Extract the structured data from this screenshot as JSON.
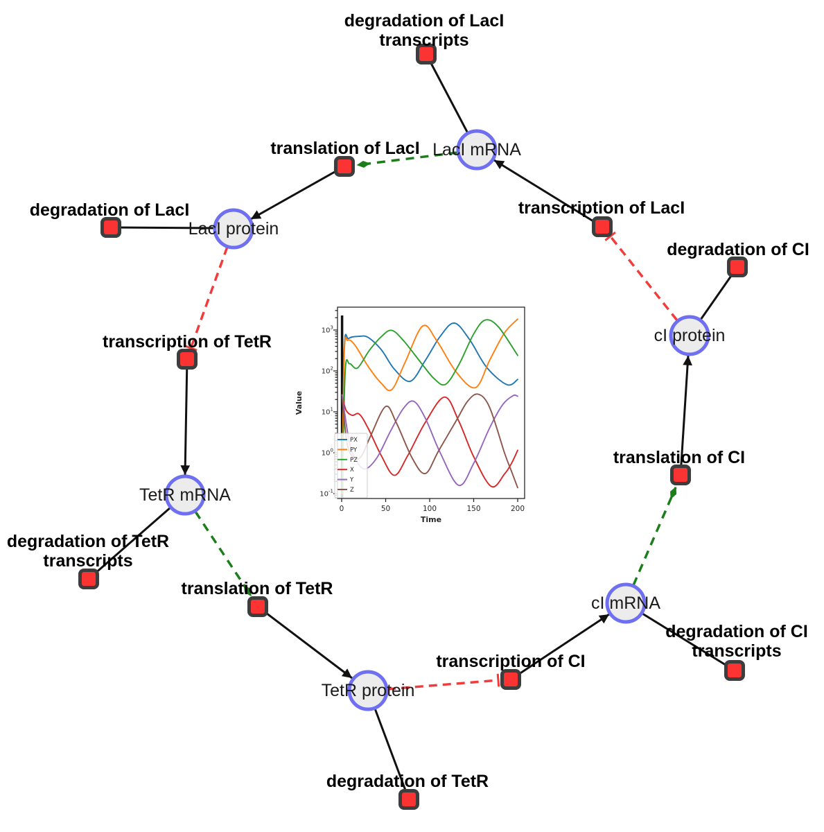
{
  "style": {
    "species_fill": "#ececec",
    "species_stroke": "#6f6ff2",
    "reaction_fill": "#fb3333",
    "reaction_stroke": "#3d3d3d",
    "edge_color": "#111111",
    "modifier_edge_color": "#1b7e1b",
    "inhibition_edge_color": "#f23c3c"
  },
  "diagram": {
    "species": [
      {
        "id": "laci-mrna",
        "label": "LacI mRNA"
      },
      {
        "id": "laci-protein",
        "label": "LacI protein"
      },
      {
        "id": "tetr-mrna",
        "label": "TetR mRNA"
      },
      {
        "id": "tetr-protein",
        "label": "TetR protein"
      },
      {
        "id": "ci-mrna",
        "label": "cI mRNA"
      },
      {
        "id": "ci-protein",
        "label": "cI protein"
      }
    ],
    "reactions": [
      {
        "id": "degradation-of-laci-transcripts",
        "lines": [
          "degradation of LacI",
          "transcripts"
        ]
      },
      {
        "id": "translation-of-laci",
        "lines": [
          "translation of LacI"
        ]
      },
      {
        "id": "transcription-of-laci",
        "lines": [
          "transcription of LacI"
        ]
      },
      {
        "id": "degradation-of-laci",
        "lines": [
          "degradation of LacI"
        ]
      },
      {
        "id": "transcription-of-tetr",
        "lines": [
          "transcription of TetR"
        ]
      },
      {
        "id": "degradation-of-tetr-transcripts",
        "lines": [
          "degradation of TetR",
          "transcripts"
        ]
      },
      {
        "id": "translation-of-tetr",
        "lines": [
          "translation of TetR"
        ]
      },
      {
        "id": "degradation-of-tetr",
        "lines": [
          "degradation of TetR"
        ]
      },
      {
        "id": "transcription-of-ci",
        "lines": [
          "transcription of CI"
        ]
      },
      {
        "id": "degradation-of-ci-transcripts",
        "lines": [
          "degradation of CI",
          "transcripts"
        ]
      },
      {
        "id": "translation-of-ci",
        "lines": [
          "translation of CI"
        ]
      },
      {
        "id": "degradation-of-ci",
        "lines": [
          "degradation of CI"
        ]
      }
    ],
    "edges": [
      {
        "source": "LacI mRNA",
        "target": "degradation of LacI transcripts",
        "type": "reactant"
      },
      {
        "source": "transcription of LacI",
        "target": "LacI mRNA",
        "type": "product"
      },
      {
        "source": "LacI mRNA",
        "target": "translation of LacI",
        "type": "modifier"
      },
      {
        "source": "translation of LacI",
        "target": "LacI protein",
        "type": "product"
      },
      {
        "source": "LacI protein",
        "target": "degradation of LacI",
        "type": "reactant"
      },
      {
        "source": "LacI protein",
        "target": "transcription of TetR",
        "type": "inhibition"
      },
      {
        "source": "transcription of TetR",
        "target": "TetR mRNA",
        "type": "product"
      },
      {
        "source": "TetR mRNA",
        "target": "degradation of TetR transcripts",
        "type": "reactant"
      },
      {
        "source": "TetR mRNA",
        "target": "translation of TetR",
        "type": "modifier"
      },
      {
        "source": "translation of TetR",
        "target": "TetR protein",
        "type": "product"
      },
      {
        "source": "TetR protein",
        "target": "degradation of TetR",
        "type": "reactant"
      },
      {
        "source": "TetR protein",
        "target": "transcription of CI",
        "type": "inhibition"
      },
      {
        "source": "transcription of CI",
        "target": "cI mRNA",
        "type": "product"
      },
      {
        "source": "cI mRNA",
        "target": "degradation of CI transcripts",
        "type": "reactant"
      },
      {
        "source": "cI mRNA",
        "target": "translation of CI",
        "type": "modifier"
      },
      {
        "source": "translation of CI",
        "target": "cI protein",
        "type": "product"
      },
      {
        "source": "cI protein",
        "target": "degradation of CI",
        "type": "reactant"
      },
      {
        "source": "cI protein",
        "target": "transcription of LacI",
        "type": "inhibition"
      }
    ]
  },
  "chart_data": {
    "type": "line",
    "title": "",
    "xlabel": "Time",
    "ylabel": "Value",
    "yscale": "log",
    "grid": false,
    "legend_position": "lower left",
    "x_ticks": [
      0,
      50,
      100,
      150,
      200
    ],
    "y_tick_exponents": [
      -1,
      0,
      1,
      2,
      3
    ],
    "xlim": [
      -5,
      208
    ],
    "ylim": [
      0.075,
      3600
    ],
    "vline_x": 0,
    "series": [
      {
        "name": "PX",
        "color": "#1f77b4",
        "points": [
          [
            0.5,
            0.1
          ],
          [
            3,
            350
          ],
          [
            8,
            620
          ],
          [
            20,
            700
          ],
          [
            30,
            660
          ],
          [
            45,
            330
          ],
          [
            60,
            110
          ],
          [
            78,
            56
          ],
          [
            95,
            180
          ],
          [
            112,
            700
          ],
          [
            128,
            1480
          ],
          [
            145,
            600
          ],
          [
            165,
            120
          ],
          [
            188,
            46
          ],
          [
            200,
            62
          ]
        ]
      },
      {
        "name": "PY",
        "color": "#ff7f0e",
        "points": [
          [
            0.5,
            0.1
          ],
          [
            3,
            280
          ],
          [
            7,
            560
          ],
          [
            15,
            430
          ],
          [
            30,
            130
          ],
          [
            45,
            50
          ],
          [
            57,
            35
          ],
          [
            72,
            160
          ],
          [
            92,
            1250
          ],
          [
            108,
            550
          ],
          [
            130,
            95
          ],
          [
            152,
            39
          ],
          [
            168,
            180
          ],
          [
            185,
            850
          ],
          [
            200,
            1850
          ]
        ]
      },
      {
        "name": "PZ",
        "color": "#2ca02c",
        "points": [
          [
            0.5,
            0.1
          ],
          [
            4,
            95
          ],
          [
            9,
            150
          ],
          [
            18,
            118
          ],
          [
            32,
            330
          ],
          [
            46,
            720
          ],
          [
            57,
            980
          ],
          [
            70,
            560
          ],
          [
            90,
            160
          ],
          [
            105,
            65
          ],
          [
            118,
            47
          ],
          [
            133,
            140
          ],
          [
            150,
            800
          ],
          [
            163,
            1750
          ],
          [
            178,
            1200
          ],
          [
            200,
            240
          ]
        ]
      },
      {
        "name": "X",
        "color": "#d62728",
        "points": [
          [
            0.5,
            26
          ],
          [
            5,
            11
          ],
          [
            12,
            8.2
          ],
          [
            20,
            8.8
          ],
          [
            30,
            4
          ],
          [
            45,
            0.85
          ],
          [
            60,
            0.28
          ],
          [
            75,
            0.85
          ],
          [
            95,
            5.5
          ],
          [
            117,
            23
          ],
          [
            133,
            6
          ],
          [
            150,
            0.8
          ],
          [
            170,
            0.15
          ],
          [
            185,
            0.3
          ],
          [
            193,
            0.55
          ],
          [
            200,
            1.15
          ]
        ]
      },
      {
        "name": "Y",
        "color": "#9467bd",
        "points": [
          [
            0.5,
            26
          ],
          [
            8,
            2.2
          ],
          [
            15,
            0.75
          ],
          [
            26,
            0.4
          ],
          [
            40,
            0.75
          ],
          [
            55,
            3.2
          ],
          [
            70,
            12
          ],
          [
            82,
            18
          ],
          [
            95,
            7
          ],
          [
            112,
            1
          ],
          [
            133,
            0.16
          ],
          [
            150,
            0.55
          ],
          [
            168,
            4
          ],
          [
            183,
            15
          ],
          [
            195,
            25
          ],
          [
            200,
            24
          ]
        ]
      },
      {
        "name": "Z",
        "color": "#8c564b",
        "points": [
          [
            0.5,
            22
          ],
          [
            6,
            1.8
          ],
          [
            13,
            0.78
          ],
          [
            22,
            0.8
          ],
          [
            33,
            2.6
          ],
          [
            50,
            13.5
          ],
          [
            62,
            5.5
          ],
          [
            80,
            0.75
          ],
          [
            95,
            0.31
          ],
          [
            110,
            1.1
          ],
          [
            130,
            6
          ],
          [
            143,
            18
          ],
          [
            155,
            27
          ],
          [
            168,
            13
          ],
          [
            185,
            1.0
          ],
          [
            193,
            0.35
          ],
          [
            200,
            0.14
          ]
        ]
      }
    ]
  }
}
